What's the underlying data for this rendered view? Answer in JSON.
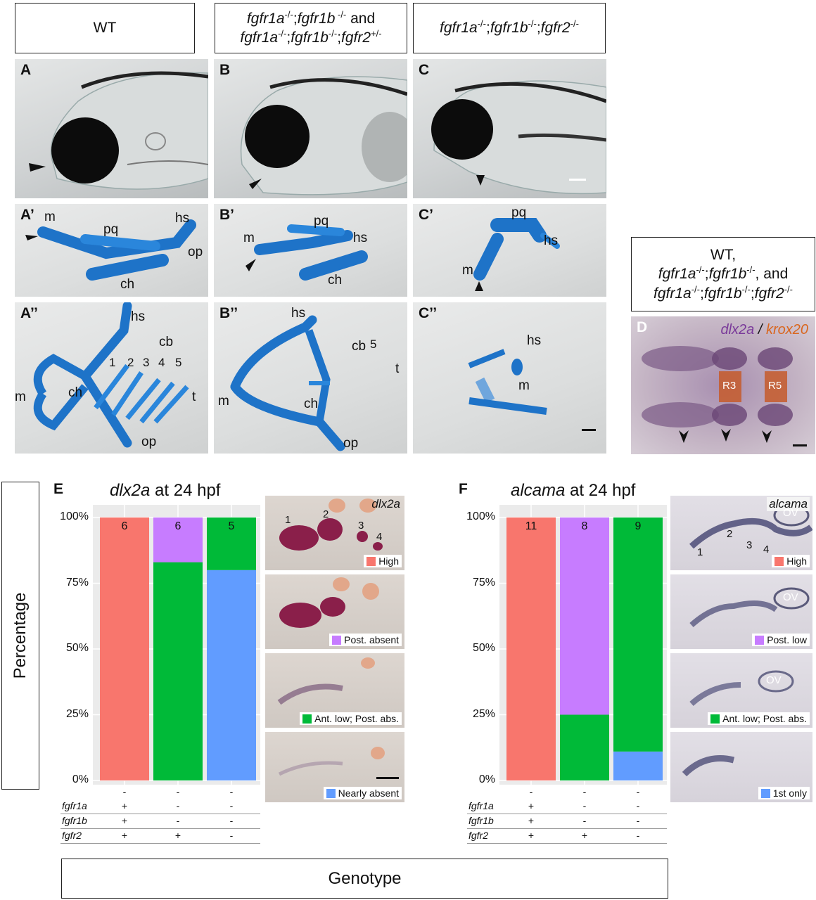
{
  "top_boxes": {
    "wt": "WT",
    "mid_line1": {
      "g1": "fgfr1a",
      "s1": "-/-",
      "g2": "fgfr1b",
      "s2": " -/-",
      "tail": " and"
    },
    "mid_line2": {
      "g1": "fgfr1a",
      "s1": "-/-",
      "g2": "fgfr1b",
      "s2": "-/-",
      "g3": "fgfr2",
      "s3": "+/-"
    },
    "right": {
      "g1": "fgfr1a",
      "s1": "-/-",
      "g2": "fgfr1b",
      "s2": "-/-",
      "g3": "fgfr2",
      "s3": "-/-"
    }
  },
  "panels": {
    "A": "A",
    "B": "B",
    "C": "C",
    "A1": "A’",
    "B1": "B’",
    "C1": "C’",
    "A2": "A’’",
    "B2": "B’’",
    "C2": "C’’",
    "D": "D",
    "E": "E",
    "F": "F"
  },
  "cart_labels": {
    "A1": {
      "m": "m",
      "pq": "pq",
      "hs": "hs",
      "op": "op",
      "ch": "ch"
    },
    "B1": {
      "m": "m",
      "pq": "pq",
      "hs": "hs",
      "ch": "ch"
    },
    "C1": {
      "pq": "pq",
      "hs": "hs",
      "m": "m"
    },
    "A2": {
      "hs": "hs",
      "cb": "cb",
      "n1": "1",
      "n2": "2",
      "n3": "3",
      "n4": "4",
      "n5": "5",
      "t": "t",
      "m": "m",
      "ch": "ch",
      "op": "op"
    },
    "B2": {
      "hs": "hs",
      "cb": "cb",
      "n5": "5",
      "t": "t",
      "m": "m",
      "ch": "ch",
      "op": "op"
    },
    "C2": {
      "hs": "hs",
      "m": "m"
    }
  },
  "d_box": {
    "l1": "WT,",
    "l2": {
      "g1": "fgfr1a",
      "s1": "-/-",
      "g2": "fgfr1b",
      "s2": "-/-",
      "tail": ", and"
    },
    "l3": {
      "g1": "fgfr1a",
      "s1": "-/-",
      "g2": "fgfr1b",
      "s2": "-/-",
      "g3": "fgfr2",
      "s3": "-/-"
    }
  },
  "d_image": {
    "gene1": "dlx2a",
    "sep": " / ",
    "gene2": "krox20",
    "r3": "R3",
    "r5": "R5"
  },
  "y_axis_title": "Percentage",
  "x_axis_title": "Genotype",
  "genotype_rows": [
    "fgfr1a",
    "fgfr1b",
    "fgfr2"
  ],
  "chart_data": [
    {
      "type": "bar",
      "title": {
        "gene": "dlx2a",
        "suffix": " at 24 hpf"
      },
      "y_ticks": [
        "100%",
        "75%",
        "50%",
        "25%",
        "0%"
      ],
      "ylim": [
        0,
        100
      ],
      "categories": [
        "+/+/+",
        "-/-/+",
        "-/-/-"
      ],
      "x_tick_marks": [
        "-",
        "-",
        "-"
      ],
      "genotypes": [
        [
          "+",
          "+",
          "+"
        ],
        [
          "-",
          "-",
          "+"
        ],
        [
          "-",
          "-",
          "-"
        ]
      ],
      "counts": [
        "6",
        "6",
        "5"
      ],
      "series": [
        {
          "name": "High",
          "color": "#F8766D",
          "values": [
            100,
            0,
            0
          ]
        },
        {
          "name": "Post. absent",
          "color": "#C77CFF",
          "values": [
            0,
            17,
            0
          ]
        },
        {
          "name": "Ant. low; Post. abs.",
          "color": "#00BA38",
          "values": [
            0,
            83,
            20
          ]
        },
        {
          "name": "Nearly absent",
          "color": "#619CFF",
          "values": [
            0,
            0,
            80
          ]
        }
      ],
      "thumb_gene": "dlx2a",
      "thumb_numbers": [
        "1",
        "2",
        "3",
        "4"
      ]
    },
    {
      "type": "bar",
      "title": {
        "gene": "alcama",
        "suffix": " at 24 hpf"
      },
      "y_ticks": [
        "100%",
        "75%",
        "50%",
        "25%",
        "0%"
      ],
      "ylim": [
        0,
        100
      ],
      "categories": [
        "+/+/+",
        "-/-/+",
        "-/-/-"
      ],
      "x_tick_marks": [
        "-",
        "-",
        "-"
      ],
      "genotypes": [
        [
          "+",
          "+",
          "+"
        ],
        [
          "-",
          "-",
          "+"
        ],
        [
          "-",
          "-",
          "-"
        ]
      ],
      "counts": [
        "11",
        "8",
        "9"
      ],
      "series": [
        {
          "name": "High",
          "color": "#F8766D",
          "values": [
            100,
            0,
            0
          ]
        },
        {
          "name": "Post. low",
          "color": "#C77CFF",
          "values": [
            0,
            75,
            0
          ]
        },
        {
          "name": "Ant. low; Post. abs.",
          "color": "#00BA38",
          "values": [
            0,
            25,
            89
          ]
        },
        {
          "name": "1st only",
          "color": "#619CFF",
          "values": [
            0,
            0,
            11
          ]
        }
      ],
      "thumb_gene": "alcama",
      "thumb_numbers": [
        "1",
        "2",
        "3",
        "4"
      ],
      "ov": "OV"
    }
  ]
}
